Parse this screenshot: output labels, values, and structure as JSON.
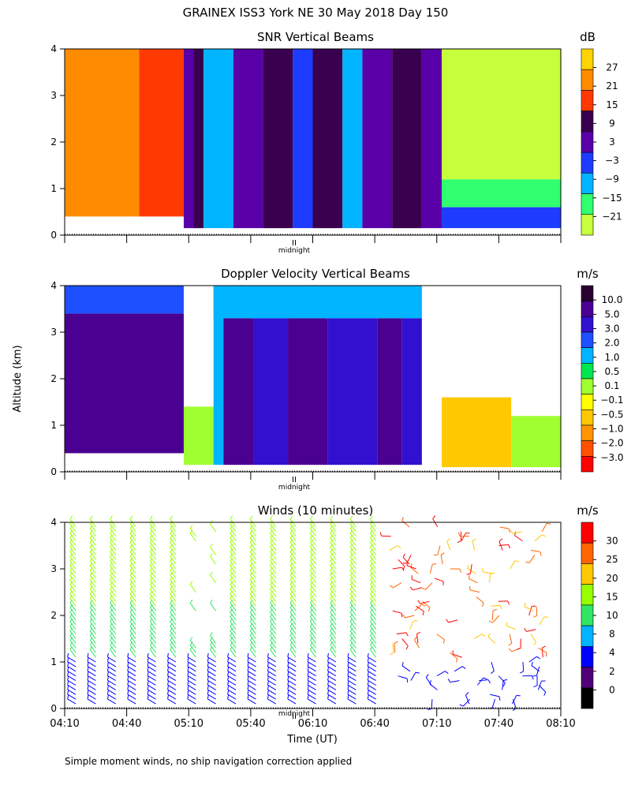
{
  "figure": {
    "title": "GRAINEX ISS3 York NE  30 May 2018 Day 150",
    "ylabel": "Altitude (km)",
    "xlabel": "Time (UT)",
    "midnight_label": "midnight",
    "footnote": "Simple moment winds, no ship navigation correction applied"
  },
  "chart_data": [
    {
      "type": "heatmap",
      "title": "SNR Vertical Beams",
      "colorbar_unit": "dB",
      "ylim": [
        0,
        4
      ],
      "yticks": [
        "0",
        "1",
        "2",
        "3",
        "4"
      ],
      "colorbar_ticks": [
        "27",
        "21",
        "15",
        "9",
        "3",
        "−3",
        "−9",
        "−15",
        "−21"
      ],
      "colorbar_colors": [
        "#ffd400",
        "#ff8c00",
        "#ff3a00",
        "#3a0050",
        "#5a00a8",
        "#1e3cff",
        "#00b4ff",
        "#30ff70",
        "#c8ff3c"
      ],
      "regions": [
        {
          "x": [
            0,
            0.15
          ],
          "y": [
            0.4,
            4.0
          ],
          "level": 21
        },
        {
          "x": [
            0.15,
            0.24
          ],
          "y": [
            0.4,
            4.0
          ],
          "level": 15
        },
        {
          "x": [
            0.24,
            0.26
          ],
          "y": [
            0.15,
            4.0
          ],
          "level": 3
        },
        {
          "x": [
            0.26,
            0.28
          ],
          "y": [
            0.15,
            4.0
          ],
          "level": 9
        },
        {
          "x": [
            0.28,
            0.34
          ],
          "y": [
            0.15,
            4.0
          ],
          "level": -9
        },
        {
          "x": [
            0.34,
            0.4
          ],
          "y": [
            0.15,
            4.0
          ],
          "level": 3
        },
        {
          "x": [
            0.4,
            0.46
          ],
          "y": [
            0.15,
            4.0
          ],
          "level": 9
        },
        {
          "x": [
            0.46,
            0.5
          ],
          "y": [
            0.15,
            4.0
          ],
          "level": -3
        },
        {
          "x": [
            0.5,
            0.56
          ],
          "y": [
            0.15,
            4.0
          ],
          "level": 9
        },
        {
          "x": [
            0.56,
            0.6
          ],
          "y": [
            0.15,
            4.0
          ],
          "level": -9
        },
        {
          "x": [
            0.6,
            0.66
          ],
          "y": [
            0.15,
            4.0
          ],
          "level": 3
        },
        {
          "x": [
            0.66,
            0.72
          ],
          "y": [
            0.15,
            4.0
          ],
          "level": 9
        },
        {
          "x": [
            0.72,
            0.76
          ],
          "y": [
            0.15,
            4.0
          ],
          "level": 3
        },
        {
          "x": [
            0.76,
            1.0
          ],
          "y": [
            0.15,
            0.6
          ],
          "level": -3
        },
        {
          "x": [
            0.76,
            1.0
          ],
          "y": [
            0.6,
            1.2
          ],
          "level": -15
        },
        {
          "x": [
            0.76,
            1.0
          ],
          "y": [
            1.2,
            4.0
          ],
          "level": -21
        }
      ]
    },
    {
      "type": "heatmap",
      "title": "Doppler Velocity Vertical Beams",
      "colorbar_unit": "m/s",
      "ylim": [
        0,
        4
      ],
      "yticks": [
        "0",
        "1",
        "2",
        "3",
        "4"
      ],
      "colorbar_ticks": [
        "10.0",
        "5.0",
        "3.0",
        "2.0",
        "1.0",
        "0.5",
        "0.1",
        "−0.1",
        "−0.5",
        "−1.0",
        "−2.0",
        "−3.0"
      ],
      "colorbar_colors": [
        "#2a0030",
        "#4a0090",
        "#3210d0",
        "#1e50ff",
        "#00b4ff",
        "#00e650",
        "#a0ff30",
        "#ffff00",
        "#ffc800",
        "#ff9600",
        "#ff5000",
        "#ff0000"
      ],
      "regions": [
        {
          "x": [
            0,
            0.24
          ],
          "y": [
            0.4,
            3.4
          ],
          "level": 5.0
        },
        {
          "x": [
            0,
            0.24
          ],
          "y": [
            3.4,
            4.0
          ],
          "level": 2.0
        },
        {
          "x": [
            0.24,
            0.3
          ],
          "y": [
            0.15,
            1.4
          ],
          "level": 0.1
        },
        {
          "x": [
            0.3,
            0.32
          ],
          "y": [
            0.15,
            4.0
          ],
          "level": 1.0
        },
        {
          "x": [
            0.32,
            0.38
          ],
          "y": [
            0.15,
            3.3
          ],
          "level": 5.0
        },
        {
          "x": [
            0.38,
            0.45
          ],
          "y": [
            0.15,
            3.3
          ],
          "level": 3.0
        },
        {
          "x": [
            0.45,
            0.53
          ],
          "y": [
            0.15,
            3.3
          ],
          "level": 5.0
        },
        {
          "x": [
            0.53,
            0.63
          ],
          "y": [
            0.15,
            3.3
          ],
          "level": 3.0
        },
        {
          "x": [
            0.63,
            0.68
          ],
          "y": [
            0.15,
            3.3
          ],
          "level": 5.0
        },
        {
          "x": [
            0.68,
            0.72
          ],
          "y": [
            0.15,
            3.3
          ],
          "level": 3.0
        },
        {
          "x": [
            0.3,
            0.72
          ],
          "y": [
            3.3,
            4.0
          ],
          "level": 1.0
        },
        {
          "x": [
            0.76,
            0.9
          ],
          "y": [
            0.1,
            1.6
          ],
          "level": -0.5
        },
        {
          "x": [
            0.9,
            1.0
          ],
          "y": [
            0.1,
            1.2
          ],
          "level": 0.1
        }
      ]
    },
    {
      "type": "scatter",
      "title": "Winds (10 minutes)",
      "colorbar_unit": "m/s",
      "ylim": [
        0,
        4
      ],
      "yticks": [
        "0",
        "1",
        "2",
        "3",
        "4"
      ],
      "colorbar_ticks": [
        "30",
        "25",
        "20",
        "15",
        "10",
        "8",
        "4",
        "2",
        "0"
      ],
      "colorbar_colors": [
        "#ff0000",
        "#ff6400",
        "#ffc800",
        "#96ff00",
        "#32e664",
        "#00b4ff",
        "#0000ff",
        "#500078",
        "#000000"
      ],
      "xticks": [
        "04:10",
        "04:40",
        "05:10",
        "05:40",
        "06:10",
        "06:40",
        "07:10",
        "07:40",
        "08:10"
      ],
      "wind_speed_bands": [
        {
          "y": [
            0.0,
            1.0
          ],
          "speed": 4
        },
        {
          "y": [
            1.0,
            2.2
          ],
          "speed": 12
        },
        {
          "y": [
            2.2,
            4.0
          ],
          "speed": 15
        }
      ]
    }
  ]
}
